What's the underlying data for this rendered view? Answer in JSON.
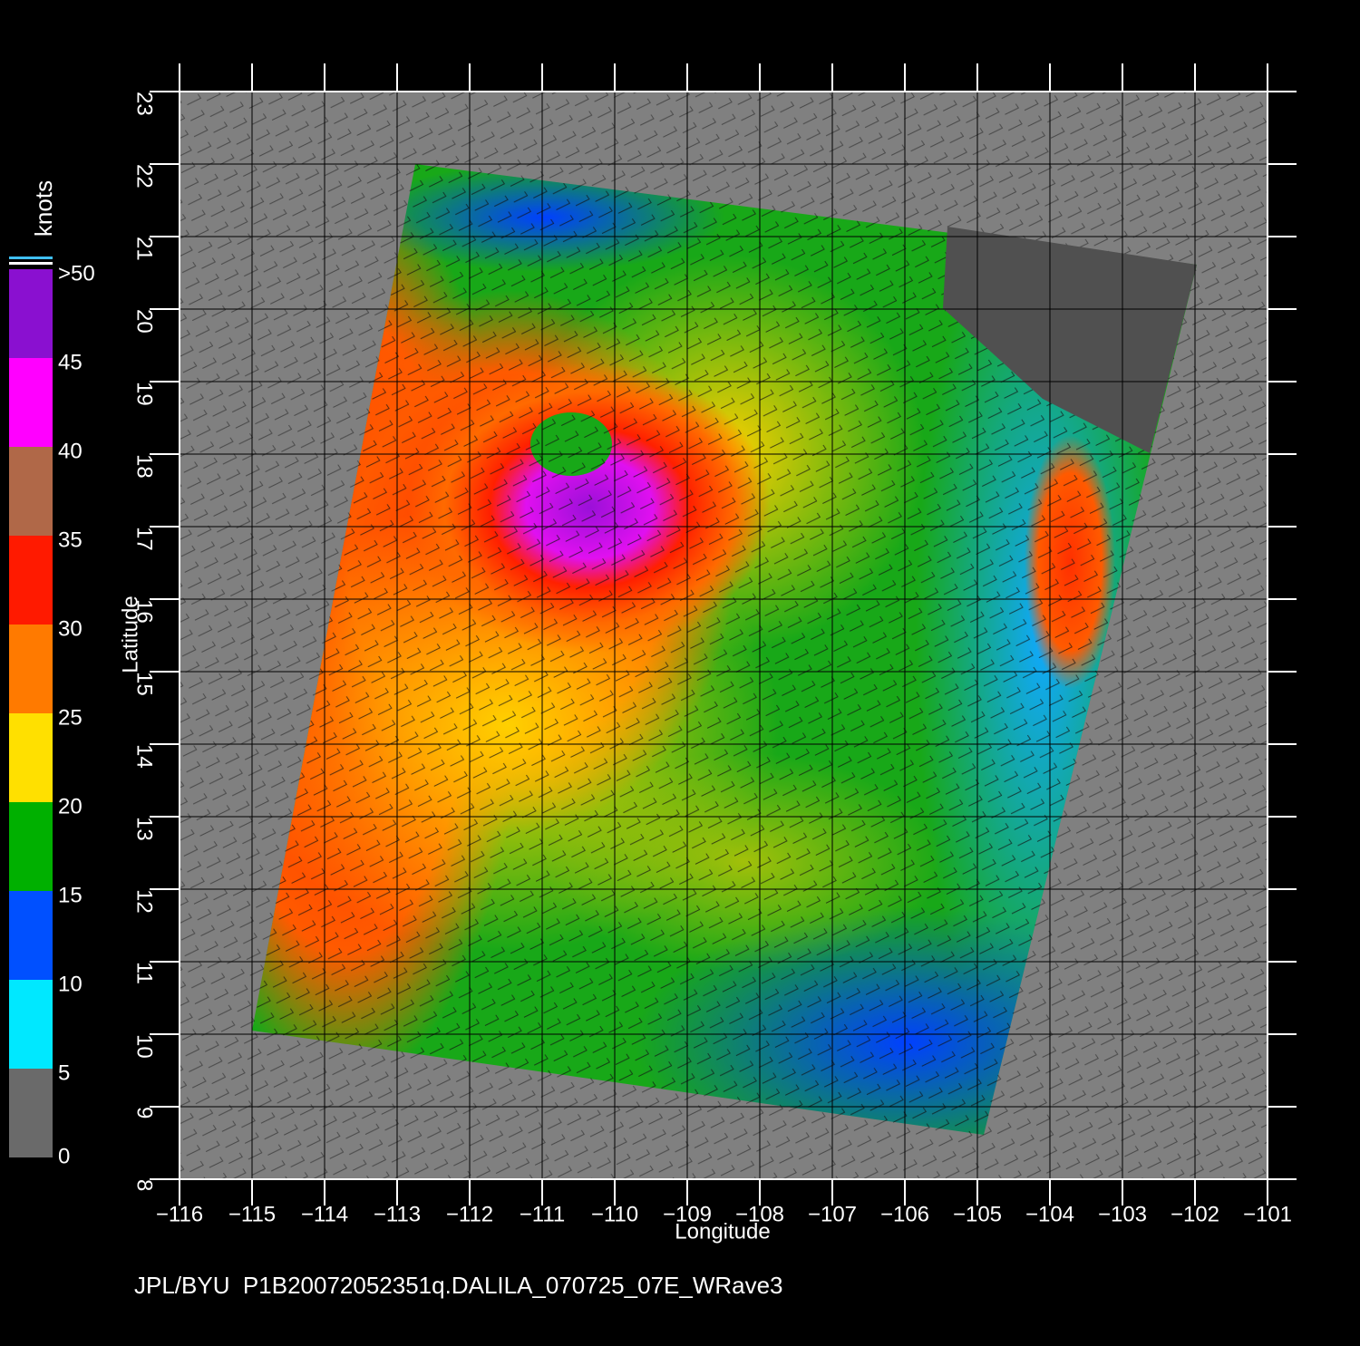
{
  "chart_data": {
    "type": "map",
    "xlabel": "Longitude",
    "ylabel": "Latitude",
    "footer": "JPL/BYU  P1B20072052351q.DALILA_070725_07E_WRave3",
    "xlim": [
      -116,
      -101
    ],
    "xticks": [
      {
        "value": -116,
        "label": "−116"
      },
      {
        "value": -115,
        "label": "−115"
      },
      {
        "value": -114,
        "label": "−114"
      },
      {
        "value": -113,
        "label": "−113"
      },
      {
        "value": -112,
        "label": "−112"
      },
      {
        "value": -111,
        "label": "−111"
      },
      {
        "value": -110,
        "label": "−110"
      },
      {
        "value": -109,
        "label": "−109"
      },
      {
        "value": -108,
        "label": "−108"
      },
      {
        "value": -107,
        "label": "−107"
      },
      {
        "value": -106,
        "label": "−106"
      },
      {
        "value": -105,
        "label": "−105"
      },
      {
        "value": -104,
        "label": "−104"
      },
      {
        "value": -103,
        "label": "−103"
      },
      {
        "value": -102,
        "label": "−102"
      },
      {
        "value": -101,
        "label": "−101"
      }
    ],
    "ylim": [
      8,
      23
    ],
    "yticks": [
      8,
      9,
      10,
      11,
      12,
      13,
      14,
      15,
      16,
      17,
      18,
      19,
      20,
      21,
      22,
      23
    ],
    "grid": true,
    "colorbar": {
      "title": "knots",
      "lim": [
        0,
        50
      ],
      "ticks": [
        0,
        5,
        10,
        15,
        20,
        25,
        30,
        35,
        40,
        45,
        {
          "value": 50,
          "label": ">50"
        }
      ],
      "colors": [
        "#6a6a6a",
        "#00e8ff",
        "#0050ff",
        "#00b000",
        "#ffe000",
        "#ff7a00",
        "#ff1a00",
        "#b06848",
        "#ff00ff",
        "#8a10d0"
      ]
    }
  }
}
